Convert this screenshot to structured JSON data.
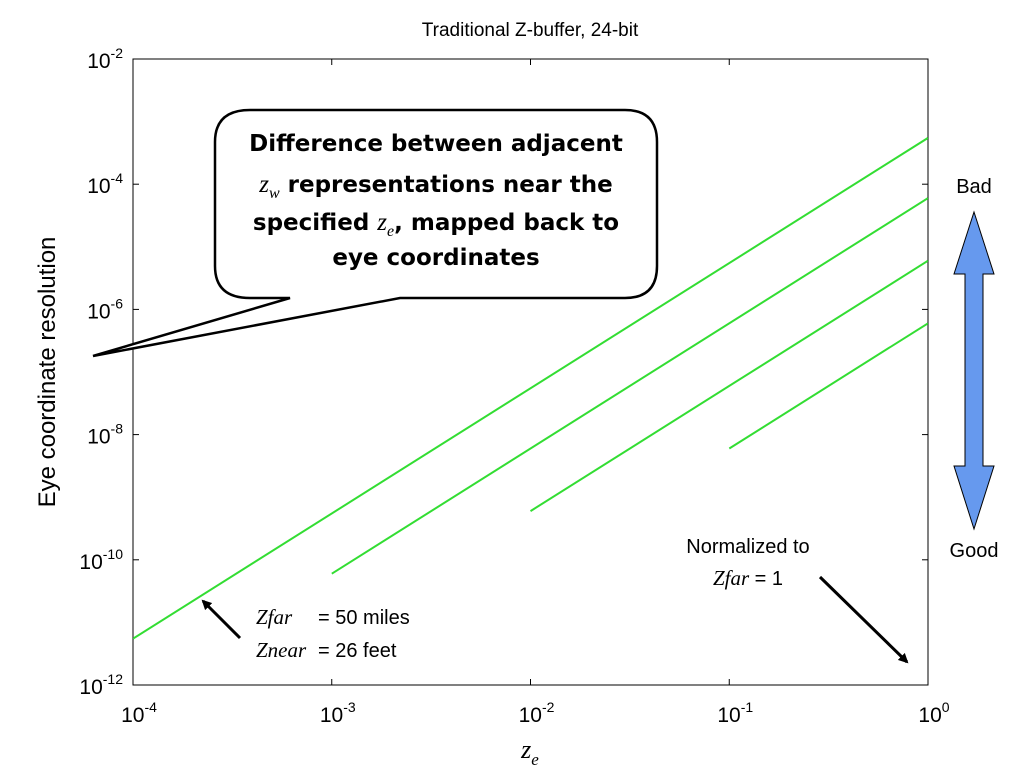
{
  "chart_data": {
    "type": "line",
    "title": "Traditional Z-buffer, 24-bit",
    "xlabel": "z",
    "xlabel_sub": "e",
    "ylabel": "Eye coordinate resolution",
    "xscale": "log",
    "yscale": "log",
    "xlim": [
      0.0001,
      1
    ],
    "ylim": [
      1e-12,
      0.01
    ],
    "grid": false,
    "x_ticks": [
      {
        "base": "10",
        "exp": "-4"
      },
      {
        "base": "10",
        "exp": "-3"
      },
      {
        "base": "10",
        "exp": "-2"
      },
      {
        "base": "10",
        "exp": "-1"
      },
      {
        "base": "10",
        "exp": "0"
      }
    ],
    "y_ticks": [
      {
        "base": "10",
        "exp": "-12"
      },
      {
        "base": "10",
        "exp": "-10"
      },
      {
        "base": "10",
        "exp": "-8"
      },
      {
        "base": "10",
        "exp": "-6"
      },
      {
        "base": "10",
        "exp": "-4"
      },
      {
        "base": "10",
        "exp": "-2"
      }
    ],
    "series": [
      {
        "x": [
          0.0001,
          1
        ],
        "y": [
          5.5e-12,
          0.00055
        ],
        "color": "#33dd33"
      },
      {
        "x": [
          0.001,
          1
        ],
        "y": [
          6e-11,
          6e-05
        ],
        "color": "#33dd33"
      },
      {
        "x": [
          0.01,
          1
        ],
        "y": [
          6e-10,
          6e-06
        ],
        "color": "#33dd33"
      },
      {
        "x": [
          0.1,
          1
        ],
        "y": [
          6e-09,
          6e-07
        ],
        "color": "#33dd33"
      }
    ],
    "callout": {
      "line1": "Difference between adjacent",
      "line2_var": "z",
      "line2_sub": "w",
      "line2_rest": " representations near the",
      "line3_pre": "specified ",
      "line3_var": "z",
      "line3_sub": "e",
      "line3_rest": ", mapped back to",
      "line4": "eye coordinates"
    },
    "annotation_params": {
      "zfar_var": "Zfar",
      "zfar_val": "= 50 miles",
      "znear_var": "Znear",
      "znear_val": "= 26 feet"
    },
    "annotation_normalized": {
      "line1": "Normalized to",
      "var": "Zfar",
      "val": " = 1"
    },
    "scale_arrow": {
      "top_label": "Bad",
      "bottom_label": "Good",
      "color": "#6699ee"
    }
  }
}
